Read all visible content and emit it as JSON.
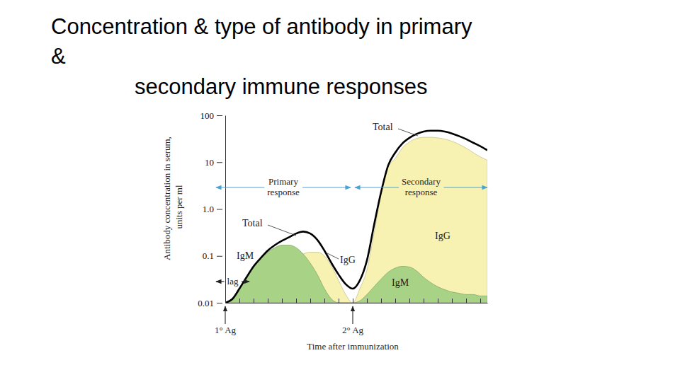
{
  "chart_data": {
    "type": "area",
    "title": [
      "Concentration & type of antibody in primary",
      "&",
      "secondary immune responses"
    ],
    "x_label": "Time after immunization",
    "y_label": [
      "Antibody concentration in serum,",
      "units per ml"
    ],
    "x": [
      0,
      1,
      2,
      3,
      4,
      5,
      6,
      7,
      8,
      9,
      10,
      11,
      12,
      13,
      14,
      15,
      16,
      17,
      18,
      19,
      20,
      21,
      22,
      23,
      24,
      25,
      26,
      27,
      28,
      29,
      30,
      31,
      32,
      33,
      34,
      35,
      36,
      37
    ],
    "xlim": [
      0,
      37
    ],
    "xticks": [
      0,
      2,
      4,
      6,
      8,
      10,
      12,
      14,
      16,
      18,
      20,
      22,
      24,
      26,
      28,
      30,
      32,
      34,
      36
    ],
    "ylim": [
      0.01,
      100
    ],
    "yticks": [
      0.01,
      0.1,
      {
        "value": 1,
        "label": "1.0"
      },
      10,
      100
    ],
    "log": "y",
    "grid": false,
    "tick_labels": "y",
    "series": [
      {
        "name": "IgG",
        "color": "#f7f2b2",
        "values": [
          0.01,
          0.01,
          0.01,
          0.01,
          0.01,
          0.01,
          0.012,
          0.02,
          0.035,
          0.06,
          0.09,
          0.11,
          0.12,
          0.12,
          0.1,
          0.06,
          0.03,
          0.015,
          0.01,
          0.02,
          0.05,
          0.3,
          2,
          8,
          12,
          20,
          27,
          32,
          34,
          34,
          33,
          31,
          28,
          24,
          20,
          16,
          13,
          11
        ]
      },
      {
        "name": "IgM",
        "color": "#a8d386",
        "values": [
          0.01,
          0.012,
          0.02,
          0.035,
          0.06,
          0.09,
          0.12,
          0.15,
          0.17,
          0.17,
          0.15,
          0.11,
          0.07,
          0.04,
          0.02,
          0.012,
          0.01,
          0.01,
          0.01,
          0.011,
          0.015,
          0.022,
          0.032,
          0.045,
          0.055,
          0.06,
          0.058,
          0.048,
          0.035,
          0.027,
          0.022,
          0.019,
          0.017,
          0.016,
          0.015,
          0.015,
          0.014,
          0.014
        ]
      },
      {
        "name": "Total",
        "type": "line",
        "color": "#000000",
        "values": [
          0.01,
          0.012,
          0.02,
          0.035,
          0.06,
          0.09,
          0.13,
          0.17,
          0.21,
          0.25,
          0.3,
          0.33,
          0.3,
          0.22,
          0.13,
          0.07,
          0.04,
          0.025,
          0.02,
          0.03,
          0.08,
          0.45,
          2.3,
          8.5,
          16,
          25,
          33,
          40,
          45,
          47,
          47,
          45,
          41,
          36,
          31,
          26,
          22,
          18
        ]
      }
    ],
    "annotations": [
      {
        "text": "1° Ag",
        "x": 0
      },
      {
        "text": "2° Ag",
        "x": 18
      },
      {
        "text": "Primary response"
      },
      {
        "text": "Secondary response"
      },
      {
        "text": "lag"
      }
    ]
  }
}
